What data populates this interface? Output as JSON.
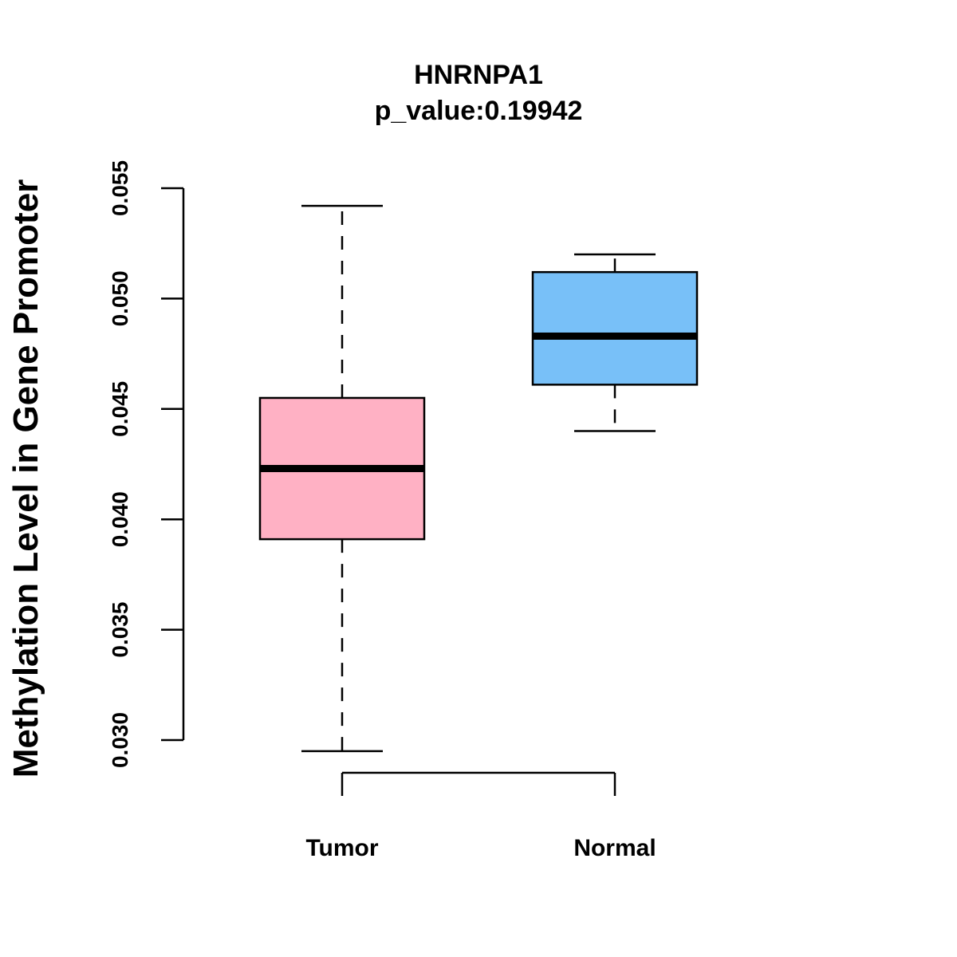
{
  "chart_data": {
    "type": "boxplot",
    "title": "HNRNPA1",
    "subtitle": "p_value:0.19942",
    "ylabel": "Methylation Level in Gene Promoter",
    "ylim": [
      0.03,
      0.055
    ],
    "yticks": [
      "0.030",
      "0.035",
      "0.040",
      "0.045",
      "0.050",
      "0.055"
    ],
    "categories": [
      "Tumor",
      "Normal"
    ],
    "groups": [
      {
        "name": "Tumor",
        "color": "#FFB1C4",
        "whisker_low": 0.0295,
        "q1": 0.0391,
        "median": 0.0423,
        "q3": 0.0455,
        "whisker_high": 0.0542
      },
      {
        "name": "Normal",
        "color": "#78C0F8",
        "whisker_low": 0.044,
        "q1": 0.0461,
        "median": 0.0483,
        "q3": 0.0512,
        "whisker_high": 0.052
      }
    ],
    "grid": false
  }
}
